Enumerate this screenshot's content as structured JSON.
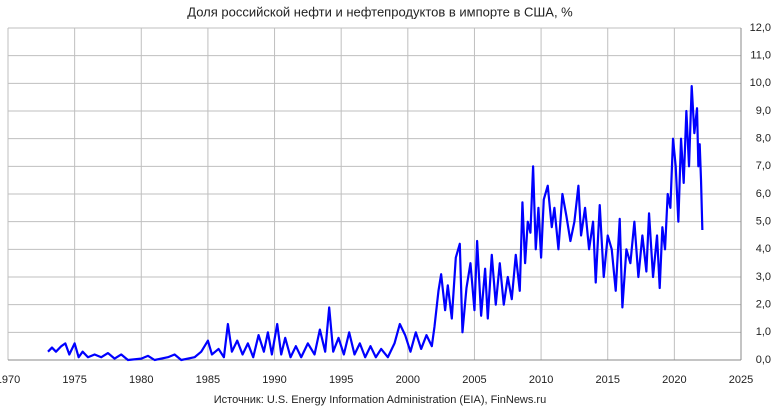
{
  "chart_data": {
    "type": "line",
    "title": "Доля российской нефти и нефтепродуктов в импорте в США, %",
    "source": "Источник: U.S. Energy Information Administration (EIA), FinNews.ru",
    "x": [
      1973.0,
      1973.3,
      1973.6,
      1974.0,
      1974.3,
      1974.6,
      1975.0,
      1975.3,
      1975.6,
      1976.0,
      1976.5,
      1977.0,
      1977.5,
      1978.0,
      1978.5,
      1979.0,
      1980.0,
      1980.5,
      1981.0,
      1982.0,
      1982.5,
      1983.0,
      1984.0,
      1984.5,
      1985.0,
      1985.3,
      1985.8,
      1986.2,
      1986.5,
      1986.8,
      1987.2,
      1987.6,
      1988.0,
      1988.4,
      1988.8,
      1989.2,
      1989.5,
      1989.8,
      1990.2,
      1990.5,
      1990.8,
      1991.2,
      1991.6,
      1992.0,
      1992.5,
      1993.0,
      1993.4,
      1993.8,
      1994.1,
      1994.4,
      1994.8,
      1995.2,
      1995.6,
      1996.0,
      1996.4,
      1996.8,
      1997.2,
      1997.6,
      1998.0,
      1998.5,
      1999.0,
      1999.4,
      1999.8,
      2000.2,
      2000.6,
      2001.0,
      2001.4,
      2001.8,
      2002.0,
      2002.3,
      2002.5,
      2002.8,
      2003.0,
      2003.3,
      2003.6,
      2003.9,
      2004.1,
      2004.4,
      2004.7,
      2005.0,
      2005.2,
      2005.5,
      2005.8,
      2006.0,
      2006.3,
      2006.6,
      2006.9,
      2007.2,
      2007.5,
      2007.8,
      2008.1,
      2008.4,
      2008.6,
      2008.8,
      2009.0,
      2009.2,
      2009.4,
      2009.6,
      2009.8,
      2010.0,
      2010.2,
      2010.5,
      2010.8,
      2011.0,
      2011.3,
      2011.6,
      2011.9,
      2012.2,
      2012.5,
      2012.8,
      2013.0,
      2013.3,
      2013.6,
      2013.9,
      2014.1,
      2014.4,
      2014.7,
      2015.0,
      2015.3,
      2015.6,
      2015.9,
      2016.1,
      2016.4,
      2016.7,
      2017.0,
      2017.3,
      2017.6,
      2017.9,
      2018.1,
      2018.4,
      2018.7,
      2018.9,
      2019.1,
      2019.3,
      2019.5,
      2019.7,
      2019.9,
      2020.1,
      2020.3,
      2020.5,
      2020.7,
      2020.9,
      2021.1,
      2021.3,
      2021.5,
      2021.7,
      2021.8,
      2021.9,
      2022.0,
      2022.1
    ],
    "series": [
      {
        "color": "#0000ff",
        "values": [
          0.3,
          0.45,
          0.3,
          0.5,
          0.6,
          0.2,
          0.6,
          0.1,
          0.3,
          0.1,
          0.2,
          0.1,
          0.25,
          0.05,
          0.2,
          0.0,
          0.05,
          0.15,
          0.0,
          0.1,
          0.2,
          0.0,
          0.1,
          0.3,
          0.7,
          0.2,
          0.4,
          0.1,
          1.3,
          0.3,
          0.7,
          0.2,
          0.6,
          0.1,
          0.9,
          0.3,
          1.0,
          0.2,
          1.3,
          0.2,
          0.8,
          0.1,
          0.5,
          0.1,
          0.6,
          0.2,
          1.1,
          0.3,
          1.9,
          0.3,
          0.8,
          0.2,
          1.0,
          0.2,
          0.6,
          0.1,
          0.5,
          0.1,
          0.4,
          0.1,
          0.6,
          1.3,
          0.9,
          0.3,
          1.0,
          0.4,
          0.9,
          0.5,
          1.2,
          2.5,
          3.1,
          1.8,
          2.7,
          1.5,
          3.7,
          4.2,
          1.0,
          2.6,
          3.5,
          1.8,
          4.3,
          1.6,
          3.3,
          1.5,
          3.8,
          2.0,
          3.5,
          2.0,
          3.0,
          2.2,
          3.8,
          2.5,
          5.7,
          3.5,
          5.0,
          4.6,
          7.0,
          4.0,
          5.5,
          3.7,
          5.8,
          6.3,
          4.8,
          5.5,
          4.0,
          6.0,
          5.2,
          4.3,
          5.0,
          6.3,
          4.5,
          5.5,
          4.0,
          5.0,
          2.8,
          5.6,
          3.0,
          4.5,
          4.0,
          2.5,
          5.1,
          1.9,
          4.0,
          3.5,
          5.0,
          3.0,
          4.5,
          3.2,
          5.3,
          3.0,
          4.5,
          2.6,
          4.8,
          4.0,
          6.0,
          5.5,
          8.0,
          7.0,
          5.0,
          8.0,
          6.4,
          9.0,
          7.0,
          9.9,
          8.2,
          9.1,
          7.0,
          7.8,
          6.5,
          4.7
        ]
      }
    ],
    "xlim": [
      1970,
      2025
    ],
    "xticks": [
      1970,
      1975,
      1980,
      1985,
      1990,
      1995,
      2000,
      2005,
      2010,
      2015,
      2020,
      2025
    ],
    "ylim": [
      0,
      12
    ],
    "yticks": [
      {
        "value": 0,
        "label": "0,0"
      },
      {
        "value": 1,
        "label": "1,0"
      },
      {
        "value": 2,
        "label": "2,0"
      },
      {
        "value": 3,
        "label": "3,0"
      },
      {
        "value": 4,
        "label": "4,0"
      },
      {
        "value": 5,
        "label": "5,0"
      },
      {
        "value": 6,
        "label": "6,0"
      },
      {
        "value": 7,
        "label": "7,0"
      },
      {
        "value": 8,
        "label": "8,0"
      },
      {
        "value": 9,
        "label": "9,0"
      },
      {
        "value": 10,
        "label": "10,0"
      },
      {
        "value": 11,
        "label": "11,0"
      },
      {
        "value": 12,
        "label": "12,0"
      }
    ],
    "grid": true
  }
}
